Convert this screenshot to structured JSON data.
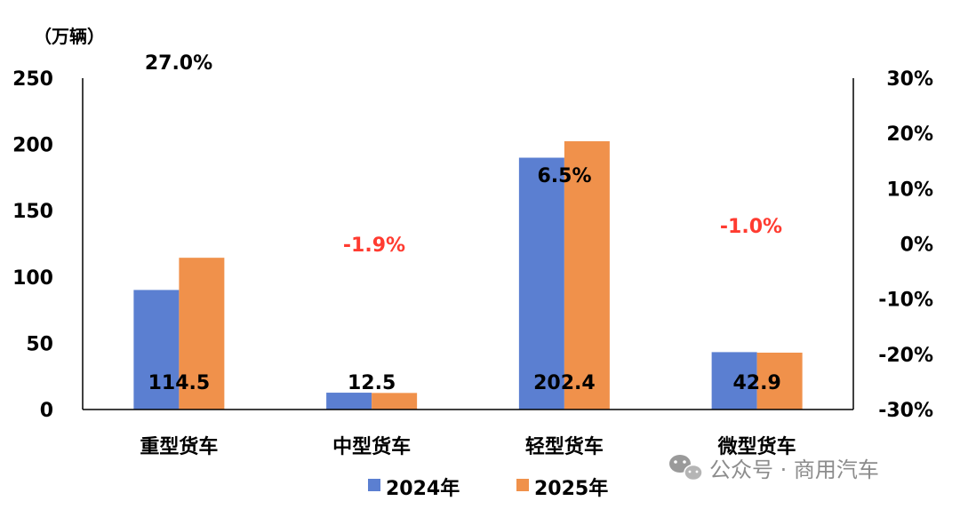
{
  "chart_data": {
    "type": "bar",
    "unit_label": "（万辆）",
    "categories": [
      "重型货车",
      "中型货车",
      "轻型货车",
      "微型货车"
    ],
    "series": [
      {
        "name": "2024年",
        "values": [
          90.2,
          12.7,
          190.0,
          43.3
        ],
        "color": "#5b7fd1"
      },
      {
        "name": "2025年",
        "values": [
          114.5,
          12.5,
          202.4,
          42.9
        ],
        "color": "#f0914b"
      }
    ],
    "value_labels": [
      "114.5",
      "12.5",
      "202.4",
      "42.9"
    ],
    "growth_labels": [
      "27.0%",
      "-1.9%",
      "6.5%",
      "-1.0%"
    ],
    "growth_colors": [
      "#000000",
      "#ff3b30",
      "#000000",
      "#ff3b30"
    ],
    "ylim": [
      0,
      250
    ],
    "yticks": [
      0,
      50,
      100,
      150,
      200,
      250
    ],
    "y2ticks": [
      "30%",
      "20%",
      "10%",
      "0%",
      "-10%",
      "-20%",
      "-30%"
    ],
    "legend_placement": "bottom-center",
    "grid": false
  },
  "watermark": {
    "text": "公众号 · 商用汽车",
    "icon": "wechat-icon"
  }
}
